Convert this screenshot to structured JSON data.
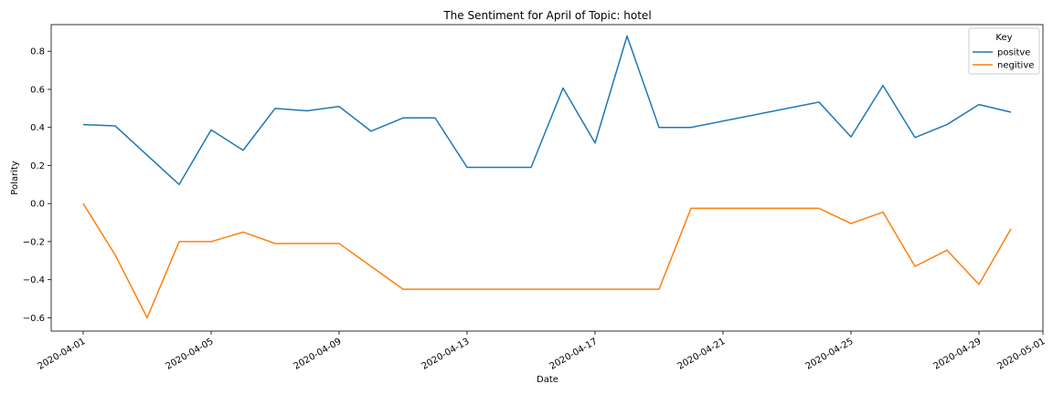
{
  "chart_data": {
    "type": "line",
    "title": "The Sentiment for April of Topic: hotel",
    "xlabel": "Date",
    "ylabel": "Polarity",
    "xlim": [
      "2020-03-31",
      "2020-05-01"
    ],
    "ylim": [
      -0.67,
      0.94
    ],
    "xticks": [
      "2020-04-01",
      "2020-04-05",
      "2020-04-09",
      "2020-04-13",
      "2020-04-17",
      "2020-04-21",
      "2020-04-25",
      "2020-04-29",
      "2020-05-01"
    ],
    "yticks": [
      -0.6,
      -0.4,
      -0.2,
      0.0,
      0.2,
      0.4,
      0.6,
      0.8
    ],
    "ytick_labels": [
      "−0.6",
      "−0.4",
      "−0.2",
      "0.0",
      "0.2",
      "0.4",
      "0.6",
      "0.8"
    ],
    "grid": false,
    "legend": {
      "title": "Key",
      "placement": "top-right"
    },
    "series": [
      {
        "name": "positve",
        "color": "#1f77b4",
        "x": [
          "2020-04-01",
          "2020-04-02",
          "2020-04-04",
          "2020-04-05",
          "2020-04-06",
          "2020-04-07",
          "2020-04-08",
          "2020-04-09",
          "2020-04-10",
          "2020-04-11",
          "2020-04-12",
          "2020-04-13",
          "2020-04-14",
          "2020-04-15",
          "2020-04-16",
          "2020-04-17",
          "2020-04-18",
          "2020-04-19",
          "2020-04-20",
          "2020-04-24",
          "2020-04-25",
          "2020-04-26",
          "2020-04-27",
          "2020-04-28",
          "2020-04-29",
          "2020-04-30"
        ],
        "y": [
          0.415,
          0.408,
          0.1,
          0.387,
          0.28,
          0.5,
          0.487,
          0.51,
          0.38,
          0.45,
          0.45,
          0.19,
          0.19,
          0.19,
          0.607,
          0.318,
          0.88,
          0.4,
          0.4,
          0.533,
          0.35,
          0.62,
          0.347,
          0.415,
          0.52,
          0.48
        ]
      },
      {
        "name": "negitive",
        "color": "#ff7f0e",
        "x": [
          "2020-04-01",
          "2020-04-02",
          "2020-04-03",
          "2020-04-04",
          "2020-04-05",
          "2020-04-06",
          "2020-04-07",
          "2020-04-08",
          "2020-04-09",
          "2020-04-11",
          "2020-04-19",
          "2020-04-20",
          "2020-04-24",
          "2020-04-25",
          "2020-04-26",
          "2020-04-27",
          "2020-04-28",
          "2020-04-29",
          "2020-04-30"
        ],
        "y": [
          0.0,
          -0.27,
          -0.6,
          -0.2,
          -0.2,
          -0.15,
          -0.21,
          -0.21,
          -0.21,
          -0.45,
          -0.45,
          -0.025,
          -0.025,
          -0.105,
          -0.045,
          -0.33,
          -0.245,
          -0.425,
          -0.133
        ]
      }
    ]
  }
}
